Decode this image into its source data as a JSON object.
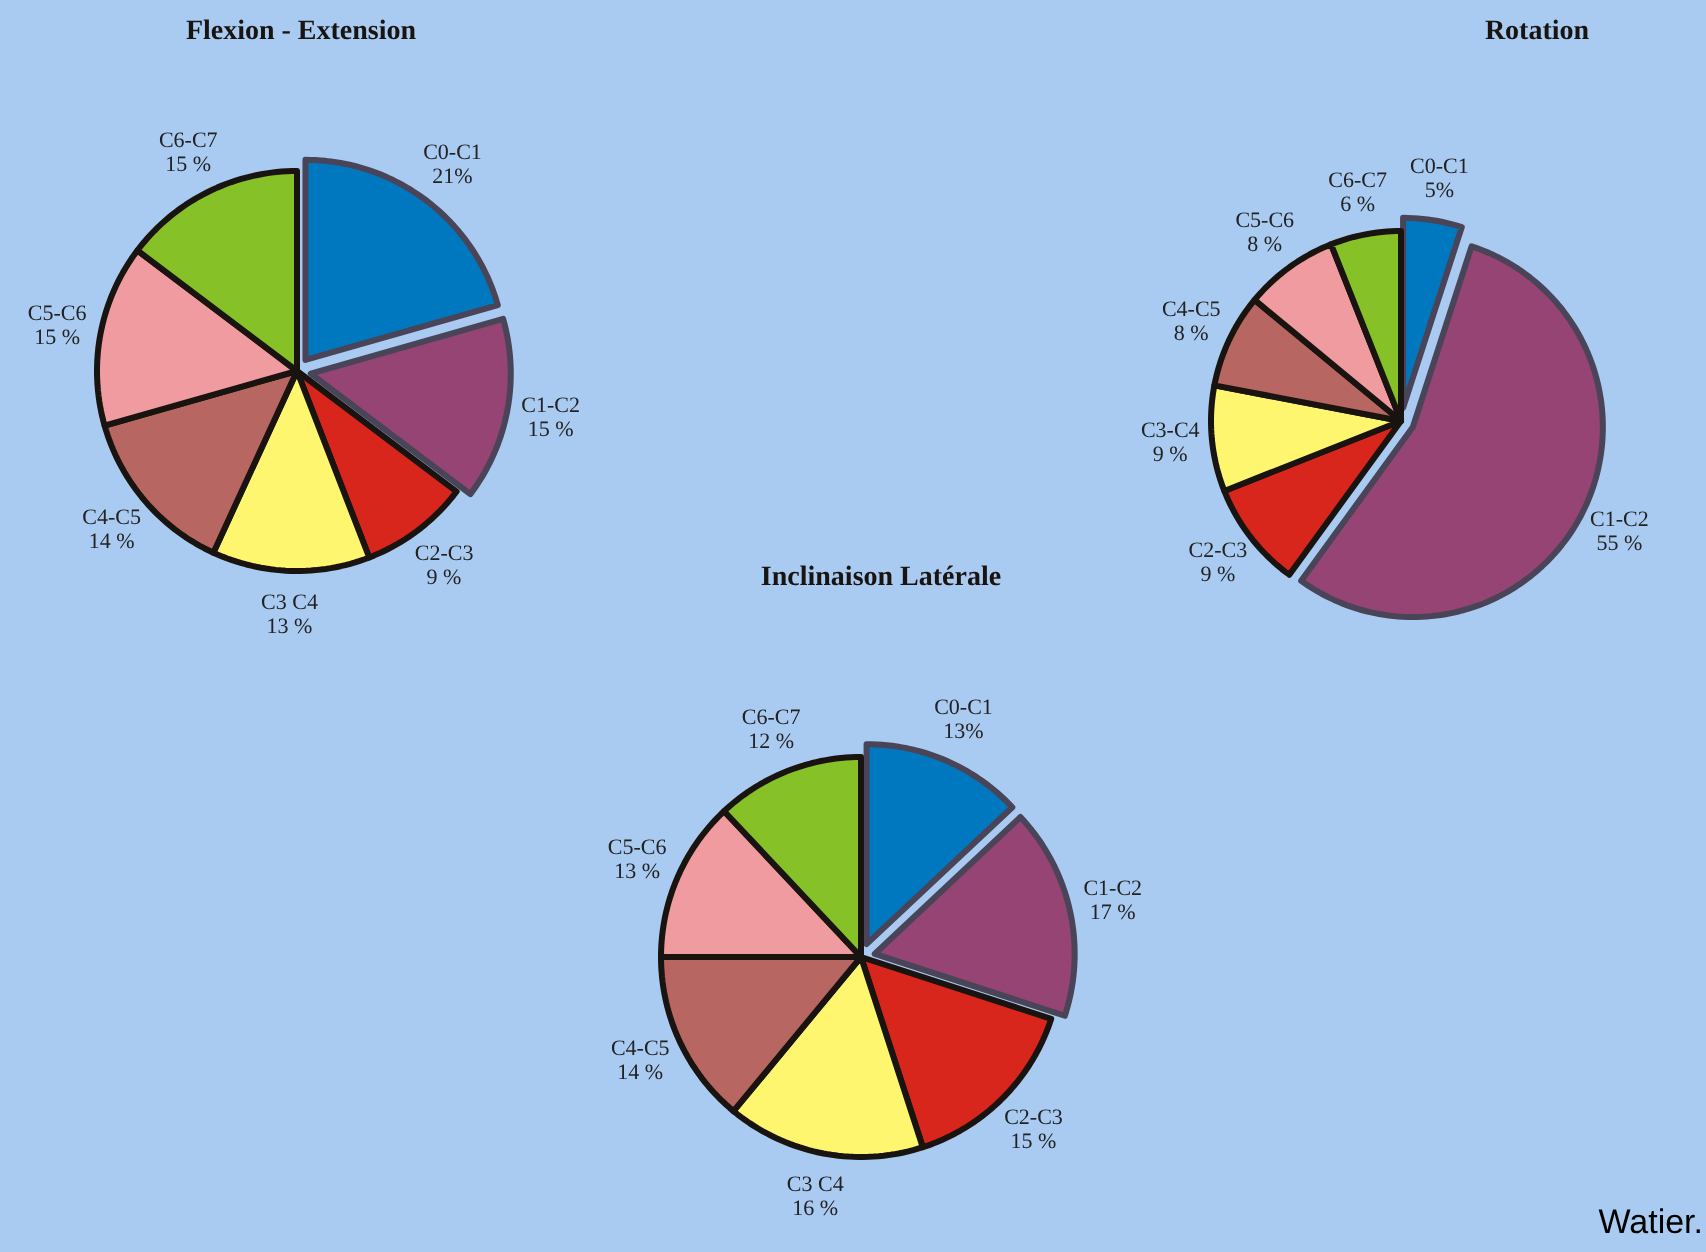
{
  "chart_data": [
    {
      "type": "pie",
      "title": "Flexion - Extension",
      "categories": [
        "C0-C1",
        "C1-C2",
        "C2-C3",
        "C3 C4",
        "C4-C5",
        "C5-C6",
        "C6-C7"
      ],
      "values": [
        21,
        15,
        9,
        13,
        14,
        15,
        15
      ],
      "value_labels": [
        "21%",
        "15 %",
        "9 %",
        "13 %",
        "14 %",
        "15 %",
        "15 %"
      ],
      "colors": [
        "#0078c0",
        "#954474",
        "#d9261c",
        "#fff670",
        "#b76662",
        "#ef9ba0",
        "#86c127"
      ]
    },
    {
      "type": "pie",
      "title": "Rotation",
      "categories": [
        "C0-C1",
        "C1-C2",
        "C2-C3",
        "C3-C4",
        "C4-C5",
        "C5-C6",
        "C6-C7"
      ],
      "values": [
        5,
        55,
        9,
        9,
        8,
        8,
        6
      ],
      "value_labels": [
        "5%",
        "55 %",
        "9 %",
        "9 %",
        "8 %",
        "8 %",
        "6 %"
      ],
      "colors": [
        "#0078c0",
        "#954474",
        "#d9261c",
        "#fff670",
        "#b76662",
        "#ef9ba0",
        "#86c127"
      ]
    },
    {
      "type": "pie",
      "title": "Inclinaison Latérale",
      "categories": [
        "C0-C1",
        "C1-C2",
        "C2-C3",
        "C3 C4",
        "C4-C5",
        "C5-C6",
        "C6-C7"
      ],
      "values": [
        13,
        17,
        15,
        16,
        14,
        13,
        12
      ],
      "value_labels": [
        "13%",
        "17 %",
        "15 %",
        "16 %",
        "14 %",
        "13 %",
        "12 %"
      ],
      "colors": [
        "#0078c0",
        "#954474",
        "#d9261c",
        "#fff670",
        "#b76662",
        "#ef9ba0",
        "#86c127"
      ],
      "annotations": [
        "Watier."
      ]
    }
  ]
}
